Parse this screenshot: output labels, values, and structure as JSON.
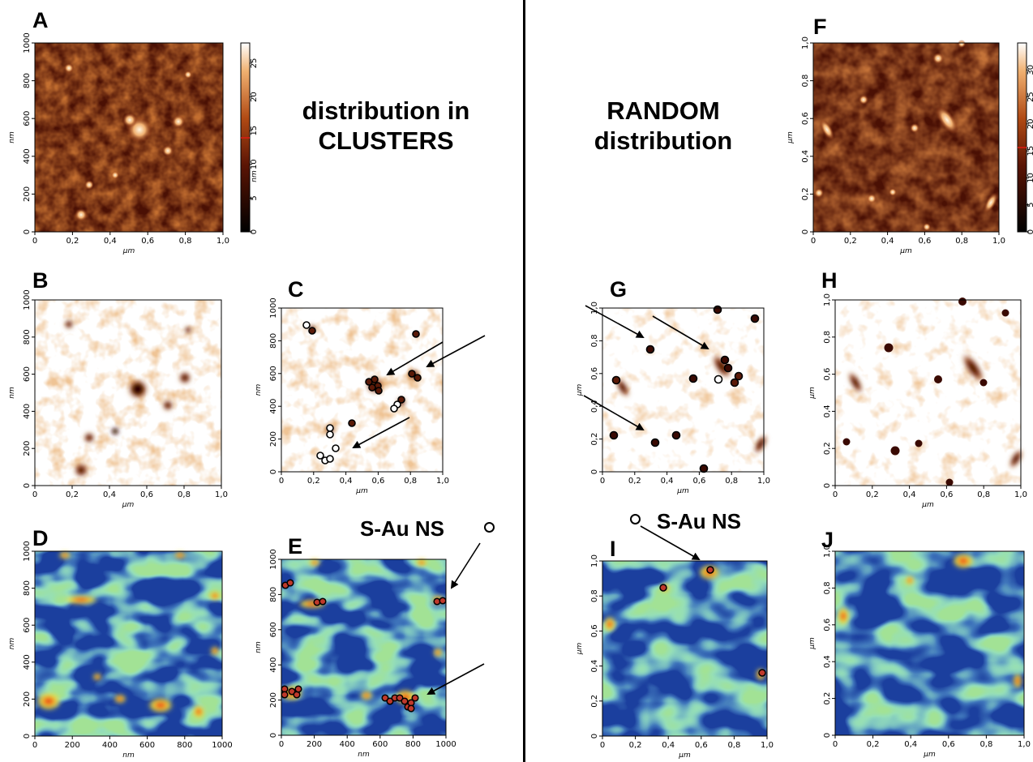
{
  "labels": {
    "A": "A",
    "B": "B",
    "C": "C",
    "D": "D",
    "E": "E",
    "F": "F",
    "G": "G",
    "H": "H",
    "I": "I",
    "J": "J"
  },
  "headings": {
    "left_line1": "distribution in",
    "left_line2": "CLUSTERS",
    "right_line1": "RANDOM",
    "right_line2": "distribution"
  },
  "legend": {
    "left": "S-Au NS",
    "right": "S-Au NS"
  },
  "units": {
    "nm": "nm",
    "um": "µm"
  },
  "ticks": {
    "um": [
      "0",
      "0,2",
      "0,4",
      "0,6",
      "0,8",
      "1,0"
    ],
    "nm": [
      "0",
      "200",
      "400",
      "600",
      "800",
      "1000"
    ]
  },
  "colorbars": {
    "A": {
      "unit": "nm",
      "ticks": [
        "0",
        "5",
        "10",
        "15",
        "20",
        "25"
      ],
      "max": 28
    },
    "F": {
      "unit": "",
      "ticks": [
        "0",
        "5",
        "10",
        "15",
        "20",
        "25",
        "30"
      ],
      "max": 35
    }
  },
  "colors": {
    "afm_dark": "#1e0500",
    "afm_mid": "#8a2a08",
    "afm_bright": "#fff6e0",
    "phase_bg": "#ffffff",
    "phase_spot": "#c46a2a",
    "phase_dark": "#3a0a02",
    "jet_bg": "#1b3f9e",
    "jet_cyan": "#36b6e0",
    "jet_green": "#5cc24a",
    "jet_yellow": "#f2e13a",
    "jet_red": "#e01a12",
    "marker_fill": "#c0392b"
  }
}
